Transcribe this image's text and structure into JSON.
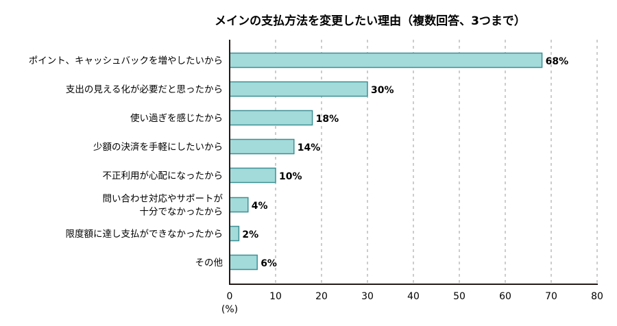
{
  "chart_data": {
    "type": "bar",
    "orientation": "horizontal",
    "title": "メインの支払方法を変更したい理由（複数回答、3つまで）",
    "categories": [
      [
        "ポイント、キャッシュバックを増やしたいから"
      ],
      [
        "支出の見える化が必要だと思ったから"
      ],
      [
        "使い過ぎを感じたから"
      ],
      [
        "少額の決済を手軽にしたいから"
      ],
      [
        "不正利用が心配になったから"
      ],
      [
        "問い合わせ対応やサポートが",
        "十分でなかったから"
      ],
      [
        "限度額に達し支払ができなかったから"
      ],
      [
        "その他"
      ]
    ],
    "values": [
      68,
      30,
      18,
      14,
      10,
      4,
      2,
      6
    ],
    "value_labels": [
      "68%",
      "30%",
      "18%",
      "14%",
      "10%",
      "4%",
      "2%",
      "6%"
    ],
    "xlim": [
      0,
      80
    ],
    "xticks": [
      "0",
      "10",
      "20",
      "30",
      "40",
      "50",
      "60",
      "70",
      "80"
    ],
    "xunit": "(%)",
    "grid": "vertical dashed",
    "colors": {
      "bar_fill": "#a3dada",
      "bar_stroke": "#3d8f94",
      "grid": "#999999",
      "axis": "#231815"
    }
  }
}
